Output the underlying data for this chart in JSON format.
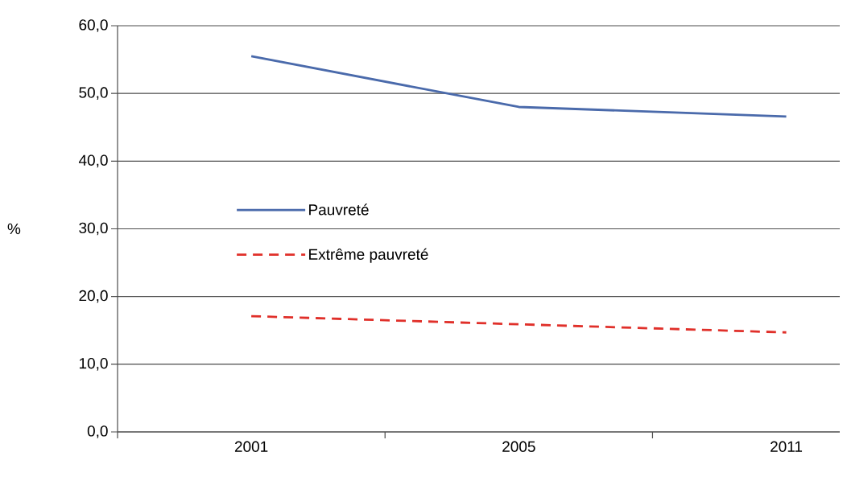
{
  "chart_data": {
    "type": "line",
    "ylabel": "%",
    "categories": [
      "2001",
      "2005",
      "2011"
    ],
    "series": [
      {
        "name": "Pauvreté",
        "color": "#4a6aab",
        "line_style": "solid",
        "values": [
          55.5,
          48.0,
          46.6
        ]
      },
      {
        "name": "Extrême pauvreté",
        "color": "#e0302a",
        "line_style": "dashed",
        "values": [
          17.1,
          15.9,
          14.7
        ]
      }
    ],
    "ylim": [
      0,
      60
    ],
    "yticks": [
      {
        "value": 0,
        "label": "0,0"
      },
      {
        "value": 10,
        "label": "10,0"
      },
      {
        "value": 20,
        "label": "20,0"
      },
      {
        "value": 30,
        "label": "30,0"
      },
      {
        "value": 40,
        "label": "40,0"
      },
      {
        "value": 50,
        "label": "50,0"
      },
      {
        "value": 60,
        "label": "60,0"
      }
    ],
    "grid": "y",
    "legend": "left"
  }
}
